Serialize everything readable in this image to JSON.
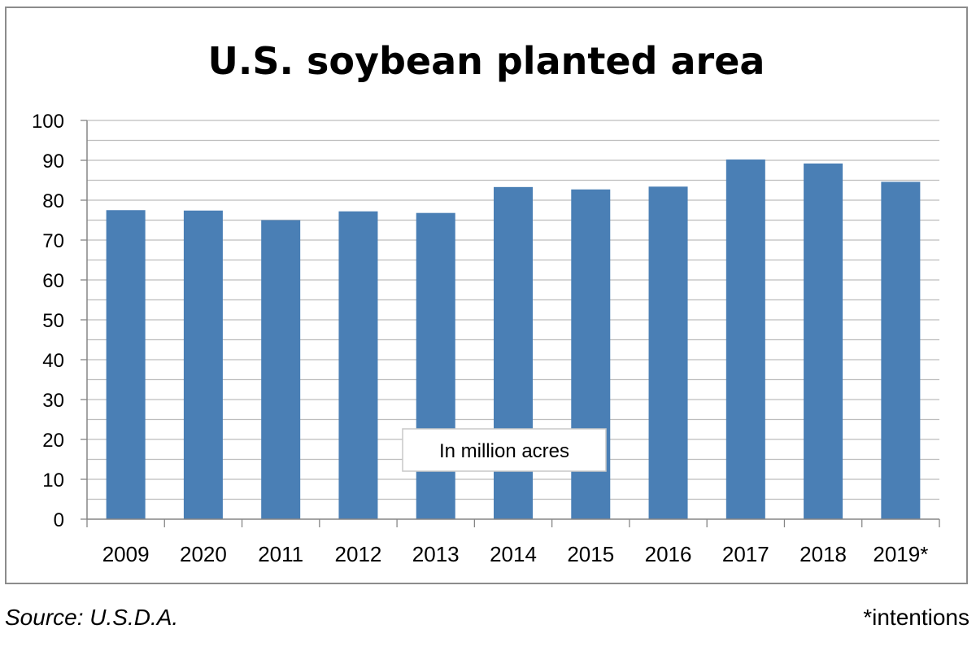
{
  "chart_data": {
    "type": "bar",
    "title": "U.S. soybean planted area",
    "categories": [
      "2009",
      "2020",
      "2011",
      "2012",
      "2013",
      "2014",
      "2015",
      "2016",
      "2017",
      "2018",
      "2019*"
    ],
    "values": [
      77.5,
      77.4,
      75.0,
      77.2,
      76.8,
      83.3,
      82.7,
      83.4,
      90.2,
      89.2,
      84.6
    ],
    "ylim": [
      0,
      100
    ],
    "yticks": [
      "0",
      "10",
      "20",
      "30",
      "40",
      "50",
      "60",
      "70",
      "80",
      "90",
      "100"
    ],
    "annotation": "In million acres",
    "bar_color": "#4a7fb5",
    "gridlines": true
  },
  "footer": {
    "source": "Source: U.S.D.A.",
    "note": "*intentions"
  }
}
